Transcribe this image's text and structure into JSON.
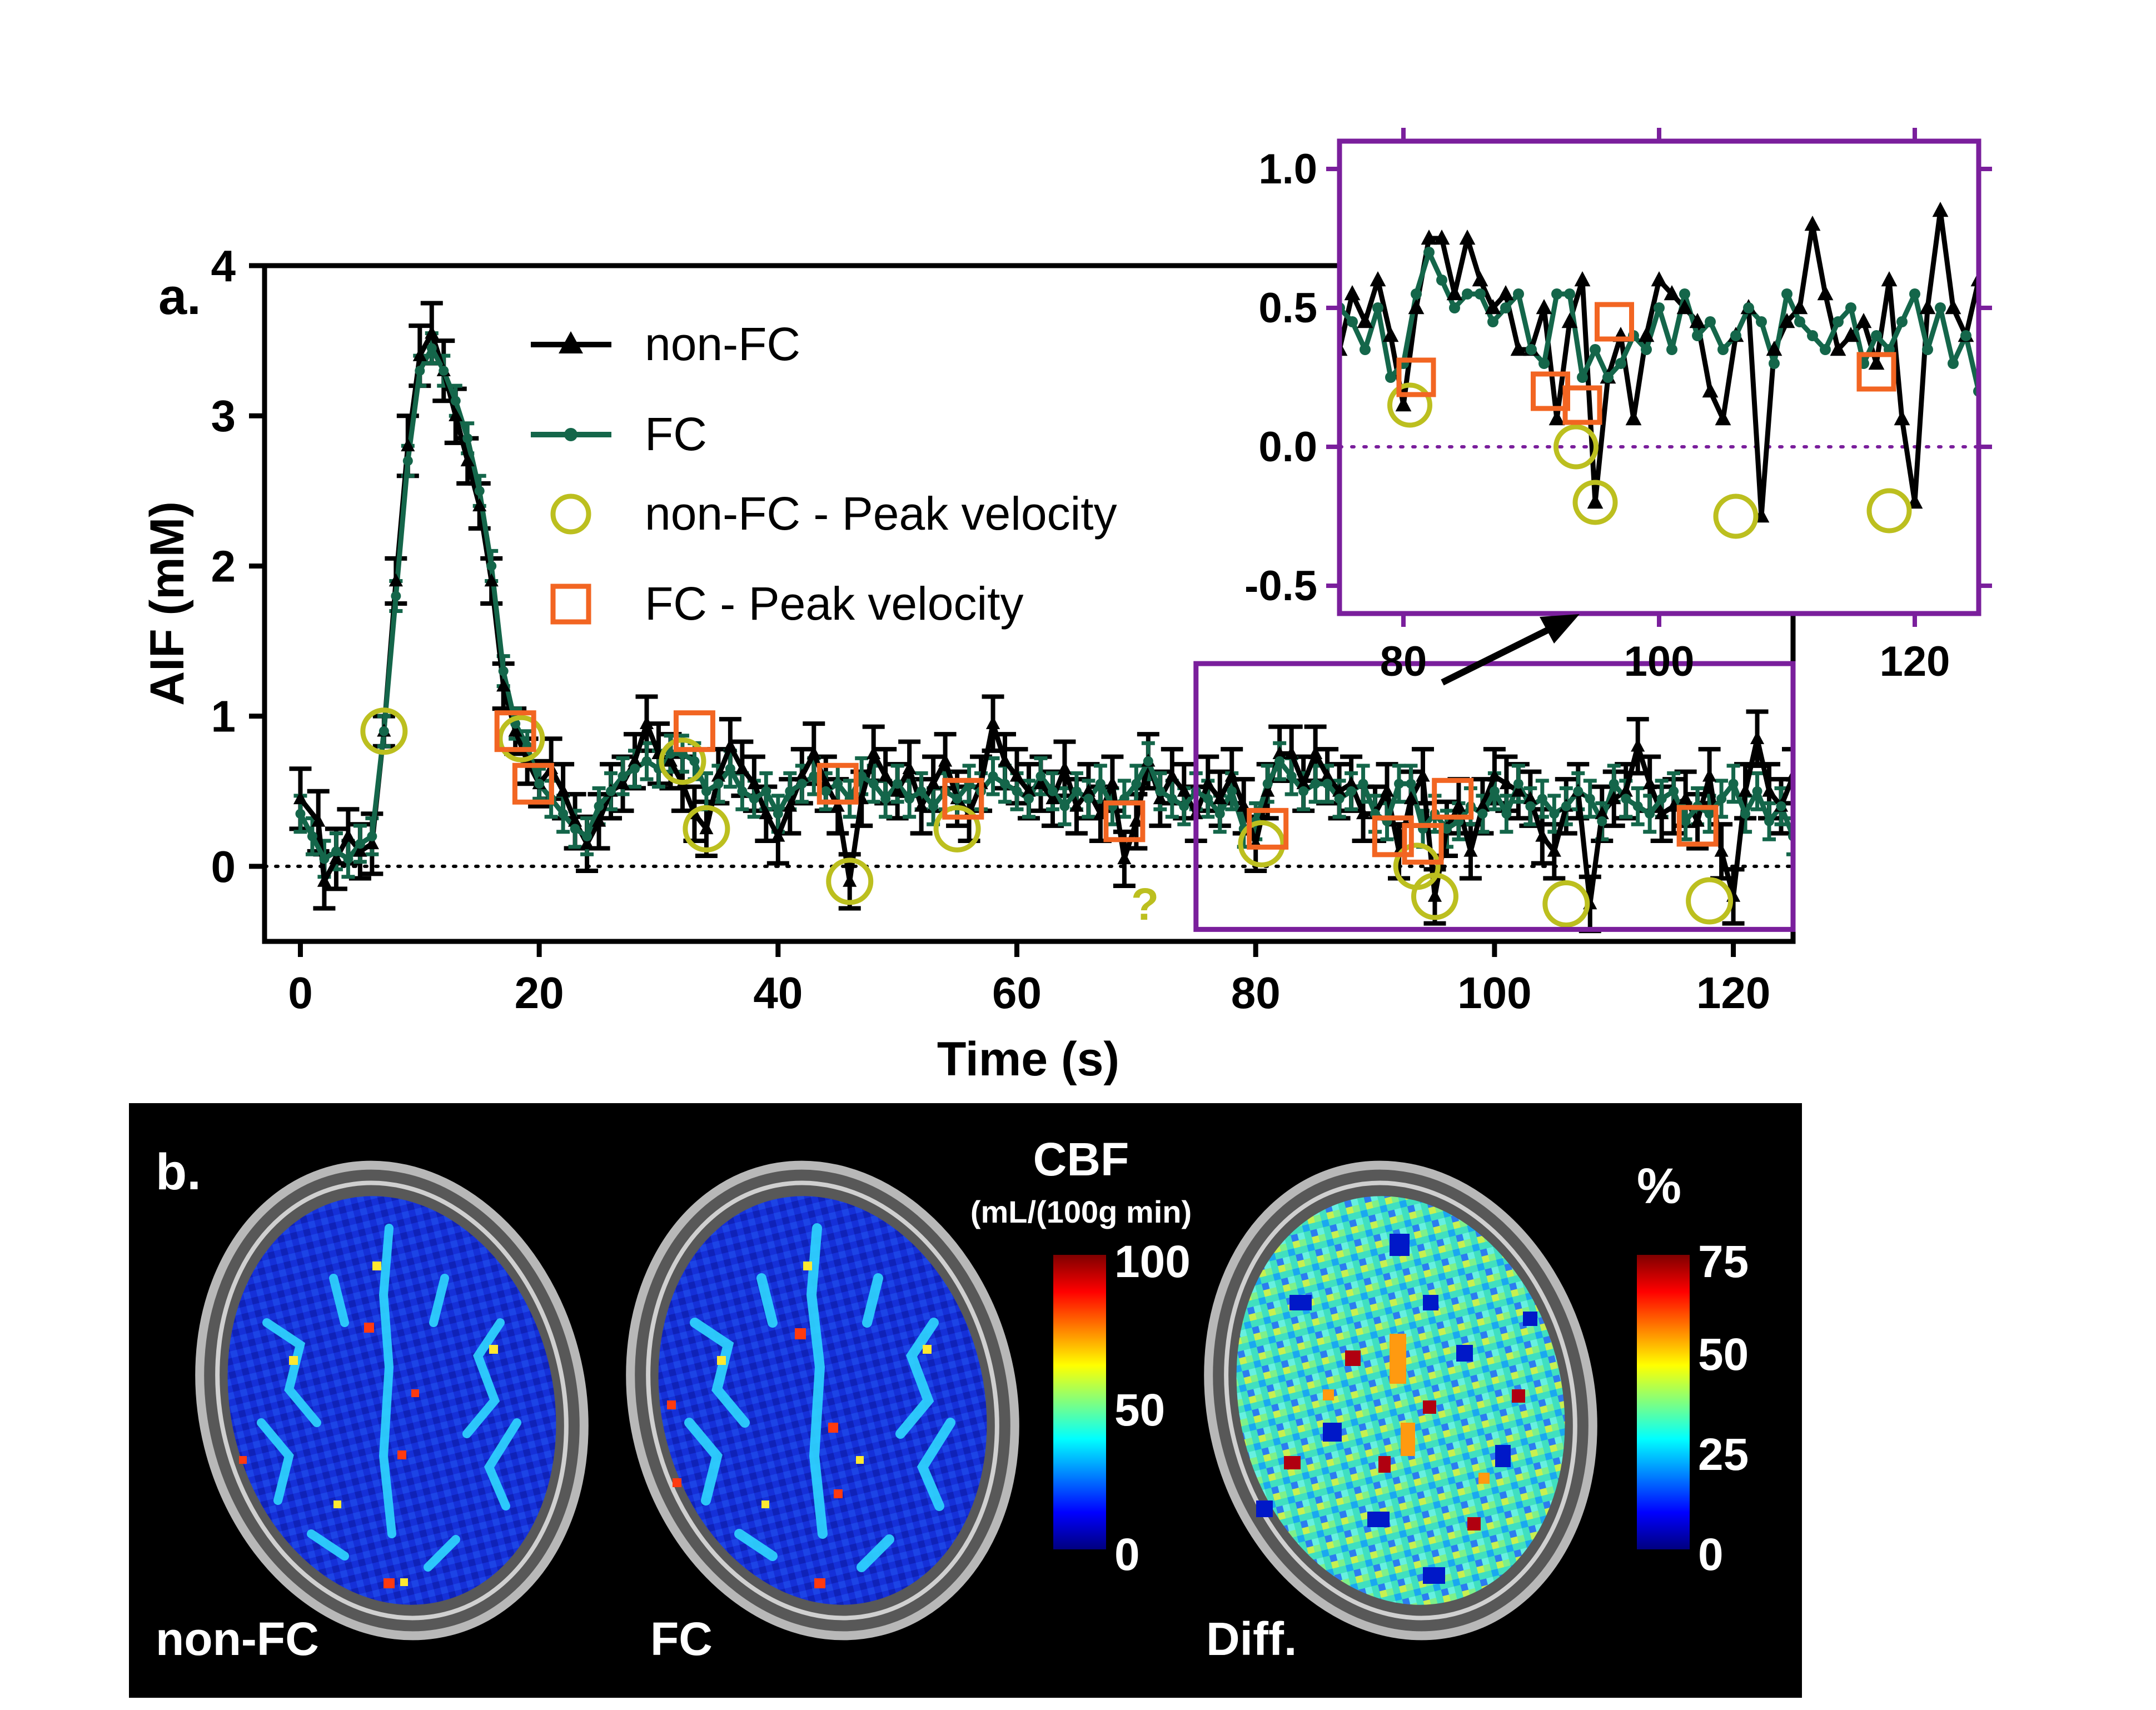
{
  "panel_a": {
    "label": "a.",
    "chart_data": [
      {
        "type": "line",
        "xlabel": "Time (s)",
        "ylabel": "AIF (mM)",
        "xlim": [
          -3,
          125
        ],
        "ylim": [
          -0.5,
          4
        ],
        "xticks": [
          0,
          20,
          40,
          60,
          80,
          100,
          120
        ],
        "yticks": [
          0,
          1,
          2,
          3,
          4
        ],
        "zero_line": "dotted",
        "legend_position": "upper-middle",
        "legend": [
          "non-FC",
          "FC",
          "non-FC - Peak velocity",
          "FC - Peak velocity"
        ],
        "series": [
          {
            "name": "non-FC",
            "color": "#000000",
            "marker": "triangle",
            "x": [
              0,
              1.5,
              2,
              3,
              4,
              5,
              6,
              7,
              8,
              9,
              10,
              11,
              12,
              13,
              14,
              15,
              16,
              17,
              18,
              19,
              20,
              21,
              22,
              23,
              24,
              25,
              26,
              27,
              28,
              29,
              30,
              31,
              32,
              33,
              34,
              35,
              36,
              37,
              38,
              39,
              40,
              41,
              42,
              43,
              44,
              45,
              46,
              47,
              48,
              49,
              50,
              51,
              52,
              53,
              54,
              55,
              56,
              57,
              58,
              59,
              60,
              61,
              62,
              63,
              64,
              65,
              66,
              67,
              68,
              69,
              70,
              71,
              72,
              73,
              74,
              75,
              76,
              77,
              78,
              79,
              80,
              81,
              82,
              83,
              84,
              85,
              86,
              87,
              88,
              89,
              90,
              91,
              92,
              93,
              94,
              95,
              96,
              97,
              98,
              99,
              100,
              101,
              102,
              103,
              104,
              105,
              106,
              107,
              108,
              109,
              110,
              111,
              112,
              113,
              114,
              115,
              116,
              117,
              118,
              119,
              120,
              121,
              122,
              123,
              124,
              125
            ],
            "y": [
              0.45,
              0.3,
              -0.1,
              0.05,
              0.2,
              0.1,
              0.15,
              0.9,
              1.9,
              2.8,
              3.4,
              3.55,
              3.3,
              3.0,
              2.7,
              2.4,
              1.9,
              1.2,
              0.9,
              0.7,
              0.55,
              0.65,
              0.5,
              0.3,
              0.15,
              0.3,
              0.5,
              0.55,
              0.7,
              0.95,
              0.75,
              0.7,
              0.55,
              0.35,
              0.25,
              0.6,
              0.8,
              0.65,
              0.55,
              0.35,
              0.2,
              0.4,
              0.6,
              0.75,
              0.55,
              0.4,
              -0.1,
              0.45,
              0.75,
              0.6,
              0.5,
              0.65,
              0.4,
              0.55,
              0.7,
              0.45,
              0.35,
              0.55,
              0.95,
              0.7,
              0.6,
              0.5,
              0.55,
              0.45,
              0.65,
              0.4,
              0.5,
              0.35,
              0.55,
              0.05,
              0.3,
              0.7,
              0.45,
              0.6,
              0.5,
              0.35,
              0.55,
              0.45,
              0.6,
              0.4,
              0.15,
              0.5,
              0.75,
              0.75,
              0.55,
              0.75,
              0.6,
              0.5,
              0.55,
              0.35,
              0.35,
              0.5,
              0.1,
              0.45,
              0.6,
              -0.2,
              0.25,
              0.4,
              0.1,
              0.4,
              0.6,
              0.55,
              0.5,
              0.45,
              0.2,
              0.1,
              0.4,
              0.5,
              -0.25,
              0.35,
              0.45,
              0.5,
              0.8,
              0.55,
              0.35,
              0.4,
              0.45,
              0.3,
              0.6,
              0.1,
              -0.2,
              0.5,
              0.85,
              0.5,
              0.4,
              0.6
            ],
            "error": [
              0.2,
              0.2,
              0.18,
              0.2,
              0.18,
              0.18,
              0.2,
              0.1,
              0.15,
              0.2,
              0.2,
              0.2,
              0.2,
              0.18,
              0.15,
              0.15,
              0.15,
              0.15,
              0.15,
              0.15,
              0.15,
              0.2,
              0.18,
              0.18,
              0.18,
              0.18,
              0.18,
              0.18,
              0.18,
              0.18,
              0.2,
              0.18,
              0.18,
              0.18,
              0.18,
              0.18,
              0.18,
              0.18,
              0.18,
              0.18,
              0.18,
              0.18,
              0.18,
              0.2,
              0.18,
              0.18,
              0.18,
              0.18,
              0.18,
              0.18,
              0.18,
              0.18,
              0.18,
              0.18,
              0.18,
              0.18,
              0.18,
              0.18,
              0.18,
              0.18,
              0.18,
              0.18,
              0.18,
              0.18,
              0.18,
              0.18,
              0.18,
              0.18,
              0.18,
              0.18,
              0.18,
              0.18,
              0.18,
              0.18,
              0.18,
              0.18,
              0.18,
              0.18,
              0.18,
              0.18,
              0.18,
              0.18,
              0.18,
              0.18,
              0.18,
              0.18,
              0.18,
              0.18,
              0.18,
              0.18,
              0.18,
              0.18,
              0.18,
              0.18,
              0.18,
              0.18,
              0.18,
              0.18,
              0.18,
              0.18,
              0.18,
              0.18,
              0.18,
              0.18,
              0.18,
              0.18,
              0.18,
              0.18,
              0.18,
              0.18,
              0.18,
              0.18,
              0.18,
              0.18,
              0.18,
              0.18,
              0.18,
              0.18,
              0.18,
              0.18,
              0.18,
              0.18,
              0.18,
              0.18,
              0.18,
              0.18
            ]
          },
          {
            "name": "FC",
            "color": "#14664a",
            "marker": "circle",
            "x": [
              0,
              1,
              2,
              3,
              4,
              5,
              6,
              7,
              8,
              9,
              10,
              11,
              12,
              13,
              14,
              15,
              16,
              17,
              18,
              19,
              20,
              21,
              22,
              23,
              24,
              25,
              26,
              27,
              28,
              29,
              30,
              31,
              32,
              33,
              34,
              35,
              36,
              37,
              38,
              39,
              40,
              41,
              42,
              43,
              44,
              45,
              46,
              47,
              48,
              49,
              50,
              51,
              52,
              53,
              54,
              55,
              56,
              57,
              58,
              59,
              60,
              61,
              62,
              63,
              64,
              65,
              66,
              67,
              68,
              69,
              70,
              71,
              72,
              73,
              74,
              75,
              76,
              77,
              78,
              79,
              80,
              81,
              82,
              83,
              84,
              85,
              86,
              87,
              88,
              89,
              90,
              91,
              92,
              93,
              94,
              95,
              96,
              97,
              98,
              99,
              100,
              101,
              102,
              103,
              104,
              105,
              106,
              107,
              108,
              109,
              110,
              111,
              112,
              113,
              114,
              115,
              116,
              117,
              118,
              119,
              120,
              121,
              122,
              123,
              124,
              125
            ],
            "y": [
              0.35,
              0.2,
              0.05,
              0.1,
              0.05,
              0.15,
              0.2,
              0.9,
              1.8,
              2.7,
              3.3,
              3.45,
              3.3,
              3.1,
              2.85,
              2.5,
              2.0,
              1.3,
              0.95,
              0.8,
              0.55,
              0.45,
              0.35,
              0.25,
              0.2,
              0.4,
              0.5,
              0.6,
              0.65,
              0.7,
              0.65,
              0.75,
              0.75,
              0.7,
              0.5,
              0.55,
              0.65,
              0.5,
              0.45,
              0.5,
              0.35,
              0.5,
              0.55,
              0.6,
              0.5,
              0.55,
              0.45,
              0.6,
              0.55,
              0.45,
              0.55,
              0.45,
              0.5,
              0.4,
              0.5,
              0.45,
              0.55,
              0.5,
              0.6,
              0.55,
              0.5,
              0.45,
              0.6,
              0.5,
              0.4,
              0.5,
              0.45,
              0.55,
              0.4,
              0.45,
              0.55,
              0.7,
              0.5,
              0.45,
              0.4,
              0.5,
              0.45,
              0.35,
              0.5,
              0.25,
              0.3,
              0.55,
              0.7,
              0.6,
              0.5,
              0.55,
              0.55,
              0.45,
              0.5,
              0.55,
              0.35,
              0.3,
              0.55,
              0.55,
              0.25,
              0.35,
              0.25,
              0.3,
              0.4,
              0.35,
              0.5,
              0.35,
              0.55,
              0.4,
              0.45,
              0.35,
              0.4,
              0.5,
              0.45,
              0.3,
              0.55,
              0.45,
              0.4,
              0.35,
              0.45,
              0.5,
              0.3,
              0.4,
              0.35,
              0.45,
              0.55,
              0.35,
              0.5,
              0.3,
              0.4,
              0.2
            ],
            "error": [
              0.12,
              0.12,
              0.12,
              0.12,
              0.12,
              0.12,
              0.12,
              0.1,
              0.1,
              0.1,
              0.1,
              0.1,
              0.1,
              0.1,
              0.1,
              0.1,
              0.1,
              0.1,
              0.1,
              0.1,
              0.1,
              0.12,
              0.12,
              0.12,
              0.12,
              0.12,
              0.12,
              0.12,
              0.12,
              0.12,
              0.12,
              0.12,
              0.12,
              0.12,
              0.12,
              0.12,
              0.12,
              0.12,
              0.12,
              0.12,
              0.12,
              0.12,
              0.12,
              0.12,
              0.12,
              0.12,
              0.12,
              0.12,
              0.12,
              0.12,
              0.12,
              0.12,
              0.12,
              0.12,
              0.12,
              0.12,
              0.12,
              0.12,
              0.12,
              0.12,
              0.12,
              0.12,
              0.12,
              0.12,
              0.12,
              0.12,
              0.12,
              0.12,
              0.12,
              0.12,
              0.12,
              0.12,
              0.12,
              0.12,
              0.12,
              0.12,
              0.12,
              0.12,
              0.12,
              0.12,
              0.12,
              0.12,
              0.12,
              0.12,
              0.12,
              0.12,
              0.12,
              0.12,
              0.12,
              0.12,
              0.12,
              0.12,
              0.12,
              0.12,
              0.12,
              0.12,
              0.12,
              0.12,
              0.12,
              0.12,
              0.12,
              0.12,
              0.12,
              0.12,
              0.12,
              0.12,
              0.12,
              0.12,
              0.12,
              0.12,
              0.12,
              0.12,
              0.12,
              0.12,
              0.12,
              0.12,
              0.12,
              0.12,
              0.12,
              0.12,
              0.12,
              0.12,
              0.12,
              0.12,
              0.12,
              0.12
            ]
          },
          {
            "name": "non-FC - Peak velocity",
            "color": "#bcbf1f",
            "marker": "open-circle",
            "x": [
              7,
              18.5,
              32,
              34,
              46,
              55,
              80.5,
              93.5,
              95,
              106,
              118
            ],
            "y": [
              0.9,
              0.85,
              0.7,
              0.25,
              -0.1,
              0.25,
              0.15,
              0.0,
              -0.2,
              -0.25,
              -0.23
            ]
          },
          {
            "name": "FC - Peak velocity",
            "color": "#f26522",
            "marker": "open-square",
            "x": [
              18,
              19.5,
              33,
              45,
              55.5,
              69,
              81,
              91.5,
              94,
              96.5,
              117
            ],
            "y": [
              0.9,
              0.55,
              0.9,
              0.55,
              0.45,
              0.3,
              0.25,
              0.2,
              0.15,
              0.45,
              0.27
            ]
          }
        ],
        "annotations": [
          "?"
        ]
      },
      {
        "type": "line",
        "role": "inset",
        "xlim": [
          75,
          125
        ],
        "ylim": [
          -0.6,
          1.1
        ],
        "xticks": [
          80,
          100,
          120
        ],
        "yticks": [
          -0.5,
          0.0,
          0.5,
          1.0
        ],
        "ytick_labels": [
          "-0.5",
          "0.0",
          "0.5",
          "1.0"
        ],
        "zero_line": "dotted",
        "border_color": "#7a1f9c"
      }
    ],
    "zoom_box_color": "#7a1f9c"
  },
  "panel_b": {
    "label": "b.",
    "images": [
      {
        "caption": "non-FC",
        "map": "cbf"
      },
      {
        "caption": "FC",
        "map": "cbf"
      },
      {
        "caption": "Diff.",
        "map": "diff"
      }
    ],
    "colorbar_cbf": {
      "title": "CBF",
      "unit": "(mL/(100g min)",
      "ticks": [
        "100",
        "50",
        "0"
      ]
    },
    "colorbar_diff": {
      "title": "%",
      "ticks": [
        "75",
        "50",
        "25",
        "0"
      ]
    }
  }
}
